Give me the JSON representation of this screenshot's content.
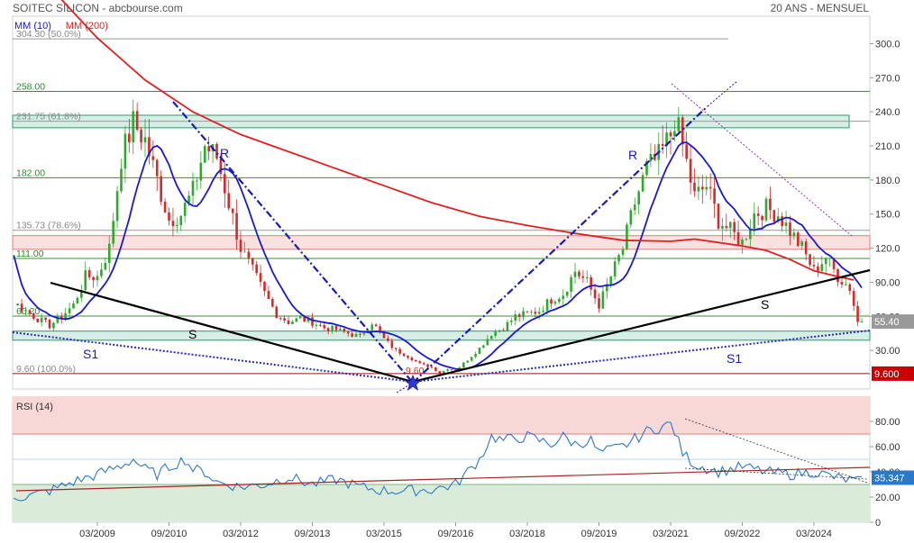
{
  "header": {
    "title": "SOITEC SILICON - abcbourse.com",
    "period": "20 ANS - MENSUEL"
  },
  "chart_data": [
    {
      "type": "candlestick",
      "legend": [
        {
          "name": "MM (10)",
          "color": "#1a1acc"
        },
        {
          "name": "MM (200)",
          "color": "#e02020"
        }
      ],
      "yticks": [
        "300.0",
        "270.0",
        "240.0",
        "210.0",
        "180.0",
        "150.0",
        "120.0",
        "90.00",
        "60.00",
        "30.00"
      ],
      "ylim": [
        0,
        320
      ],
      "xticks": [
        "03/2009",
        "09/2010",
        "03/2012",
        "09/2013",
        "03/2015",
        "09/2016",
        "03/2018",
        "09/2019",
        "03/2021",
        "09/2022",
        "03/2024"
      ],
      "last_price": "55.40",
      "low_value": "9.600",
      "levels": [
        {
          "label": "304.30 (50.0%)",
          "value": 304.3,
          "color": "#999999"
        },
        {
          "label": "258.00",
          "value": 258,
          "color": "#2a9a2a"
        },
        {
          "label": "231.75 (61.8%)",
          "value": 231.75,
          "color": "#999999"
        },
        {
          "label": "182.00",
          "value": 182,
          "color": "#2a9a2a"
        },
        {
          "label": "135.73 (78.6%)",
          "value": 135.73,
          "color": "#999999"
        },
        {
          "label": "111.00",
          "value": 111,
          "color": "#2a9a2a"
        },
        {
          "label": "60.20",
          "value": 60.2,
          "color": "#2a9a2a"
        },
        {
          "label": "9.60 (100.0%)",
          "value": 9.6,
          "color": "#999999"
        }
      ],
      "low_marker_label": "9.60",
      "annotations": [
        "S1",
        "S",
        "R",
        "R",
        "S",
        "S1"
      ]
    },
    {
      "type": "line",
      "title": "RSI (14)",
      "yticks": [
        "80.00",
        "60.00",
        "40.00",
        "20.00",
        "0"
      ],
      "ylim": [
        0,
        100
      ],
      "last_value": "35.347",
      "zones": [
        {
          "from": 70,
          "to": 100,
          "color": "#f8d7d7"
        },
        {
          "from": 0,
          "to": 30,
          "color": "#d9ecd9"
        }
      ]
    }
  ]
}
